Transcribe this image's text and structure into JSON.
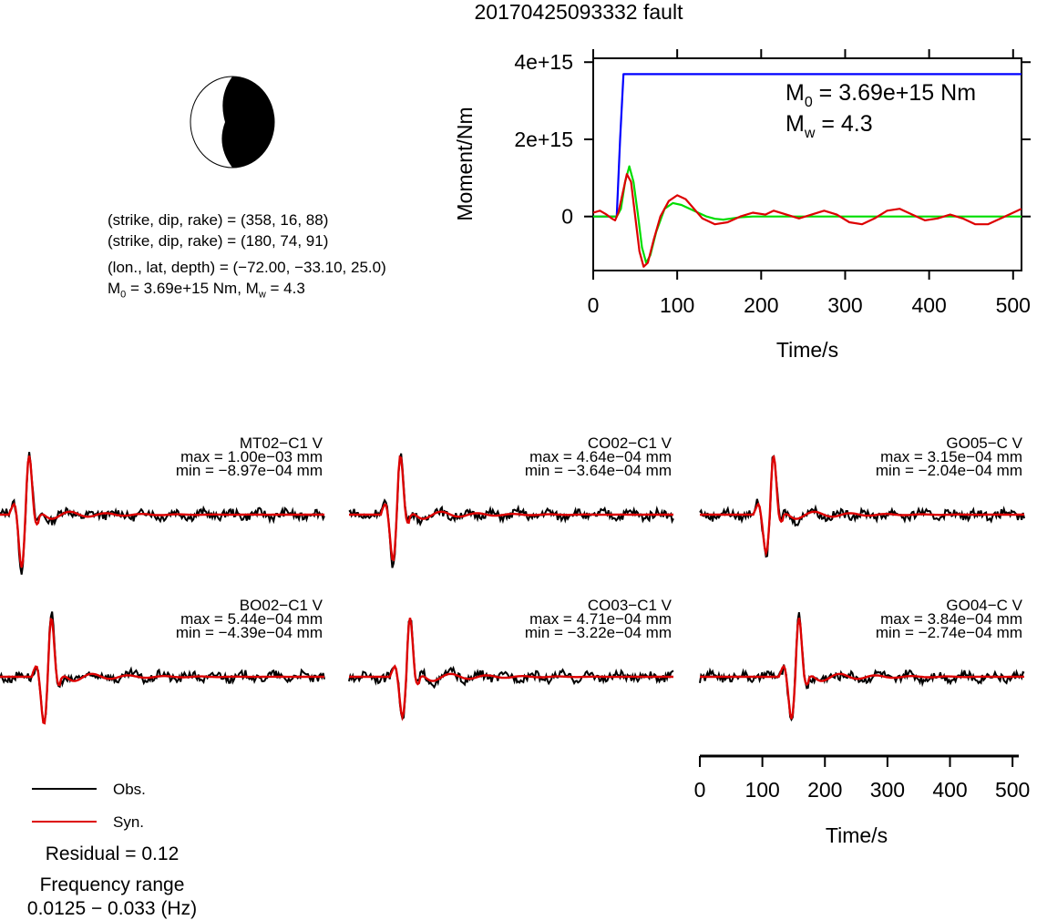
{
  "header": {
    "title": "20170425093332 fault"
  },
  "mechanism": {
    "line1": "(strike, dip, rake) = (358, 16, 88)",
    "line2": "(strike, dip, rake) = (180, 74, 91)",
    "line3": "(lon., lat, depth) = (−72.00, −33.10, 25.0)",
    "line4_pre": "M",
    "line4_sub": "0",
    "line4_mid": " = 3.69e+15 Nm, M",
    "line4_sub2": "w",
    "line4_post": " = 4.3"
  },
  "moment_chart": {
    "ylabel": "Moment/Nm",
    "xlabel": "Time/s",
    "yticks": [
      "0",
      "2e+15",
      "4e+15"
    ],
    "xticks": [
      "0",
      "100",
      "200",
      "300",
      "400",
      "500"
    ],
    "m0_pre": "M",
    "m0_sub": "0",
    "m0_post": " = 3.69e+15 Nm",
    "mw_pre": "M",
    "mw_sub": "w",
    "mw_post": " = 4.3"
  },
  "chart_data": [
    {
      "type": "line",
      "title": "",
      "xlabel": "Time/s",
      "ylabel": "Moment/Nm",
      "xlim": [
        0,
        510
      ],
      "ylim": [
        -1400000000000000.0,
        4100000000000000.0
      ],
      "series": [
        {
          "color": "#0000ff",
          "x": [
            0,
            28,
            32,
            36,
            510
          ],
          "y": [
            0,
            0,
            2000000000000000.0,
            3690000000000000.0,
            3690000000000000.0
          ]
        },
        {
          "color": "#00dd00",
          "x": [
            0,
            10,
            20,
            28,
            33,
            38,
            43,
            48,
            53,
            58,
            63,
            68,
            75,
            85,
            95,
            105,
            115,
            125,
            135,
            145,
            155,
            165,
            175,
            190,
            210,
            250,
            300,
            400,
            510
          ],
          "y": [
            0,
            0,
            0,
            0,
            200000000000000.0,
            900000000000000.0,
            1300000000000000.0,
            900000000000000.0,
            100000000000000.0,
            -800000000000000.0,
            -1200000000000000.0,
            -1000000000000000.0,
            -400000000000000.0,
            200000000000000.0,
            350000000000000.0,
            300000000000000.0,
            200000000000000.0,
            100000000000000.0,
            0,
            -60000000000000.0,
            -80000000000000.0,
            -50000000000000.0,
            -20000000000000.0,
            0,
            0,
            0,
            0,
            0,
            0
          ]
        },
        {
          "color": "#dd0000",
          "x": [
            0,
            8,
            16,
            22,
            26,
            30,
            35,
            40,
            45,
            50,
            55,
            60,
            65,
            72,
            80,
            90,
            100,
            110,
            120,
            130,
            145,
            160,
            175,
            190,
            205,
            215,
            230,
            245,
            260,
            275,
            290,
            305,
            320,
            335,
            350,
            365,
            380,
            395,
            410,
            425,
            440,
            455,
            470,
            490,
            510
          ],
          "y": [
            100000000000000.0,
            150000000000000.0,
            50000000000000.0,
            -50000000000000.0,
            -100000000000000.0,
            100000000000000.0,
            600000000000000.0,
            1100000000000000.0,
            900000000000000.0,
            0.0,
            -900000000000000.0,
            -1300000000000000.0,
            -1200000000000000.0,
            -600000000000000.0,
            0,
            400000000000000.0,
            550000000000000.0,
            450000000000000.0,
            200000000000000.0,
            -50000000000000.0,
            -200000000000000.0,
            -150000000000000.0,
            0.0,
            100000000000000.0,
            50000000000000.0,
            150000000000000.0,
            50000000000000.0,
            -50000000000000.0,
            50000000000000.0,
            150000000000000.0,
            50000000000000.0,
            -150000000000000.0,
            -200000000000000.0,
            -50000000000000.0,
            150000000000000.0,
            200000000000000.0,
            50000000000000.0,
            -100000000000000.0,
            -50000000000000.0,
            50000000000000.0,
            -50000000000000.0,
            -200000000000000.0,
            -200000000000000.0,
            0.0,
            200000000000000.0
          ]
        }
      ]
    },
    {
      "type": "line",
      "xlabel": "Time/s",
      "xlim": [
        0,
        510
      ],
      "xticks": [
        0,
        100,
        200,
        300,
        400,
        500
      ],
      "stations": [
        {
          "name": "MT02−C1 V",
          "max": "max = 1.00e−03 mm",
          "min": "min = −8.97e−04 mm",
          "peak": 0.001,
          "trough": -0.000897
        },
        {
          "name": "CO02−C1 V",
          "max": "max = 4.64e−04 mm",
          "min": "min = −3.64e−04 mm",
          "peak": 0.000464,
          "trough": -0.000364
        },
        {
          "name": "GO05−C V",
          "max": "max = 3.15e−04 mm",
          "min": "min = −2.04e−04 mm",
          "peak": 0.000315,
          "trough": -0.000204
        },
        {
          "name": "BO02−C1 V",
          "max": "max = 5.44e−04 mm",
          "min": "min = −4.39e−04 mm",
          "peak": 0.000544,
          "trough": -0.000439
        },
        {
          "name": "CO03−C1 V",
          "max": "max = 4.71e−04 mm",
          "min": "min = −3.22e−04 mm",
          "peak": 0.000471,
          "trough": -0.000322
        },
        {
          "name": "GO04−C V",
          "max": "max = 3.84e−04 mm",
          "min": "min = −2.74e−04 mm",
          "peak": 0.000384,
          "trough": -0.000274
        }
      ]
    }
  ],
  "legend": {
    "obs": "Obs.",
    "syn": "Syn.",
    "obs_color": "#000000",
    "syn_color": "#dd0000"
  },
  "residual": "Residual = 0.12",
  "freq": {
    "line1": "Frequency range",
    "line2": "0.0125 − 0.033 (Hz)"
  },
  "wave_axis": {
    "xlabel": "Time/s",
    "xticks": [
      "0",
      "100",
      "200",
      "300",
      "400",
      "500"
    ]
  }
}
